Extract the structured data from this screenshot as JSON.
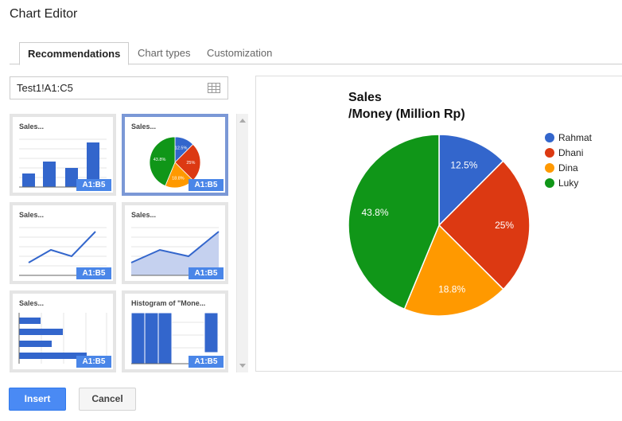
{
  "window": {
    "title": "Chart Editor"
  },
  "tabs": [
    {
      "label": "Recommendations",
      "active": true
    },
    {
      "label": "Chart types",
      "active": false
    },
    {
      "label": "Customization",
      "active": false
    }
  ],
  "range": {
    "value": "Test1!A1:C5",
    "icon": "grid-icon"
  },
  "thumbnails": [
    {
      "label": "Sales...",
      "badge": "A1:B5",
      "kind": "column",
      "selected": false
    },
    {
      "label": "Sales...",
      "badge": "A1:B5",
      "kind": "pie",
      "selected": true,
      "slice_labels": [
        "12.5%",
        "25%",
        "18.8%",
        "43.8%"
      ]
    },
    {
      "label": "Sales...",
      "badge": "A1:B5",
      "kind": "line",
      "selected": false
    },
    {
      "label": "Sales...",
      "badge": "A1:B5",
      "kind": "area",
      "selected": false
    },
    {
      "label": "Sales...",
      "badge": "A1:B5",
      "kind": "bar",
      "selected": false
    },
    {
      "label": "Histogram of \"Mone...",
      "badge": "A1:B5",
      "kind": "histogram",
      "selected": false
    }
  ],
  "colors": {
    "accent": "#4a86e8",
    "series": [
      "#3366cc",
      "#dc3912",
      "#ff9900",
      "#109618"
    ]
  },
  "chart_data": {
    "type": "pie",
    "title": "Sales",
    "subtitle": "/Money (Million Rp)",
    "categories": [
      "Rahmat",
      "Dhani",
      "Dina",
      "Luky"
    ],
    "values": [
      12.5,
      25,
      18.8,
      43.8
    ],
    "slice_labels": [
      "12.5%",
      "25%",
      "18.8%",
      "43.8%"
    ],
    "legend": "right"
  },
  "buttons": {
    "insert": "Insert",
    "cancel": "Cancel"
  }
}
